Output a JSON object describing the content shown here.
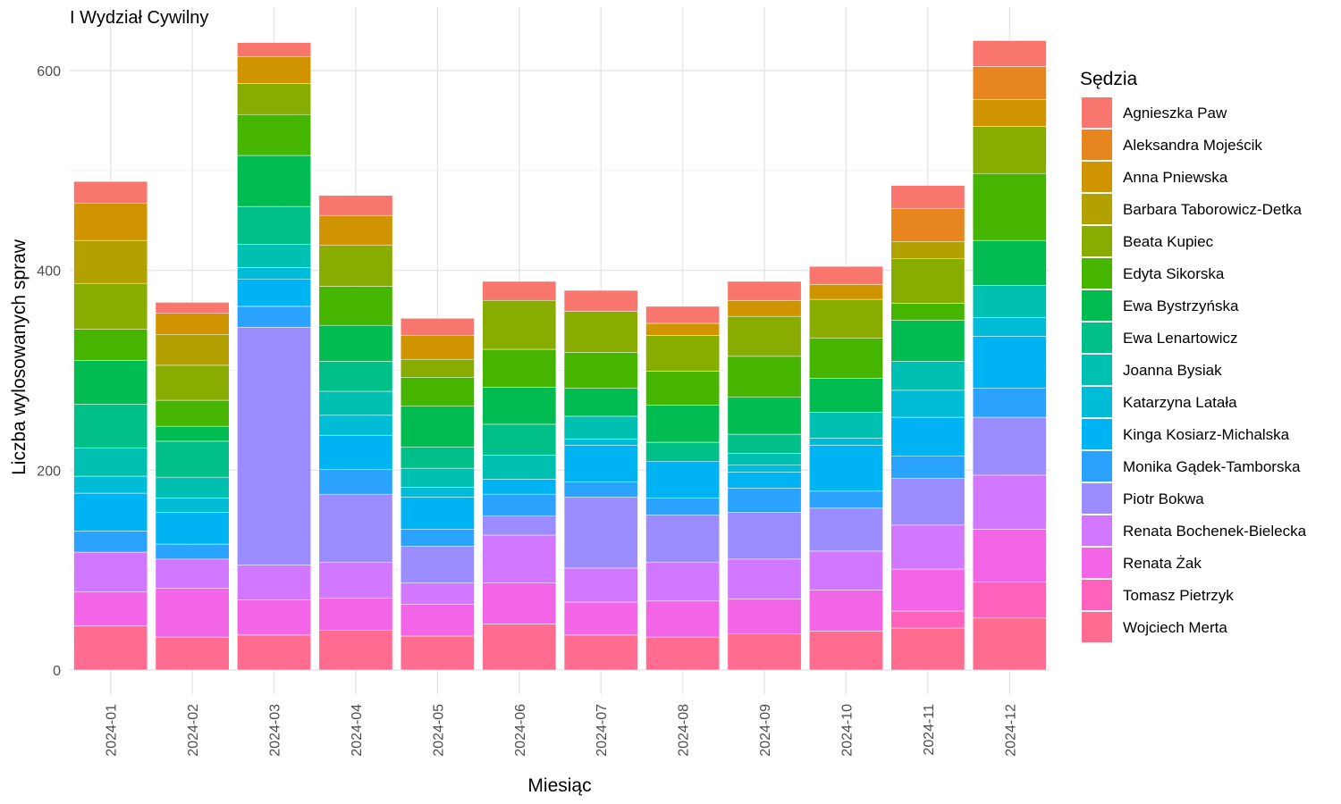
{
  "chart_data": {
    "type": "bar",
    "stacked": true,
    "title": "I Wydział Cywilny",
    "xlabel": "Miesiąc",
    "ylabel": "Liczba wylosowanych spraw",
    "ylim": [
      0,
      640
    ],
    "yticks": [
      0,
      200,
      400,
      600
    ],
    "grid": true,
    "legend_position": "right",
    "legend_title": "Sędzia",
    "categories": [
      "2024-01",
      "2024-02",
      "2024-03",
      "2024-04",
      "2024-05",
      "2024-06",
      "2024-07",
      "2024-08",
      "2024-09",
      "2024-10",
      "2024-11",
      "2024-12"
    ],
    "series": [
      {
        "name": "Agnieszka Paw",
        "color": "#F8766D",
        "values": [
          22,
          11,
          14,
          20,
          17,
          19,
          21,
          17,
          19,
          18,
          23,
          26
        ]
      },
      {
        "name": "Aleksandra Mojeścik",
        "color": "#E7851E",
        "values": [
          0,
          0,
          0,
          0,
          0,
          0,
          0,
          0,
          0,
          0,
          33,
          33
        ]
      },
      {
        "name": "Anna Pniewska",
        "color": "#D09400",
        "values": [
          37,
          21,
          27,
          30,
          24,
          0,
          0,
          12,
          16,
          15,
          0,
          27
        ]
      },
      {
        "name": "Barbara Taborowicz-Detka",
        "color": "#B2A100",
        "values": [
          43,
          31,
          0,
          0,
          0,
          0,
          0,
          0,
          0,
          0,
          17,
          0
        ]
      },
      {
        "name": "Beata Kupiec",
        "color": "#89AC00",
        "values": [
          46,
          35,
          31,
          41,
          18,
          49,
          41,
          36,
          40,
          39,
          45,
          47
        ]
      },
      {
        "name": "Edyta Sikorska",
        "color": "#45B500",
        "values": [
          31,
          26,
          41,
          39,
          29,
          38,
          36,
          34,
          41,
          40,
          17,
          67
        ]
      },
      {
        "name": "Ewa Bystrzyńska",
        "color": "#00BC51",
        "values": [
          44,
          15,
          51,
          36,
          41,
          37,
          28,
          37,
          37,
          34,
          41,
          45
        ]
      },
      {
        "name": "Ewa Lenartowicz",
        "color": "#00C087",
        "values": [
          44,
          36,
          38,
          30,
          21,
          31,
          0,
          19,
          19,
          0,
          0,
          0
        ]
      },
      {
        "name": "Joanna Bysiak",
        "color": "#00C0B2",
        "values": [
          28,
          21,
          23,
          24,
          19,
          24,
          23,
          0,
          12,
          26,
          29,
          32
        ]
      },
      {
        "name": "Katarzyna Latała",
        "color": "#00BCD6",
        "values": [
          17,
          14,
          12,
          20,
          10,
          0,
          6,
          0,
          7,
          7,
          27,
          19
        ]
      },
      {
        "name": "Kinga Kosiarz-Michalska",
        "color": "#00B3F2",
        "values": [
          38,
          32,
          27,
          34,
          32,
          15,
          37,
          37,
          16,
          46,
          39,
          52
        ]
      },
      {
        "name": "Monika Gądek-Tamborska",
        "color": "#29A3FF",
        "values": [
          21,
          15,
          21,
          25,
          17,
          22,
          15,
          17,
          24,
          17,
          22,
          29
        ]
      },
      {
        "name": "Piotr Bokwa",
        "color": "#9C8DFF",
        "values": [
          0,
          0,
          238,
          68,
          37,
          19,
          71,
          47,
          47,
          43,
          47,
          58
        ]
      },
      {
        "name": "Renata Bochenek-Bielecka",
        "color": "#D277FF",
        "values": [
          40,
          29,
          35,
          36,
          21,
          48,
          34,
          39,
          40,
          39,
          44,
          54
        ]
      },
      {
        "name": "Renata Żak",
        "color": "#F265E7",
        "values": [
          34,
          49,
          35,
          32,
          32,
          41,
          33,
          36,
          35,
          41,
          42,
          53
        ]
      },
      {
        "name": "Tomasz Pietrzyk",
        "color": "#FF62BC",
        "values": [
          0,
          0,
          0,
          0,
          0,
          0,
          0,
          0,
          0,
          0,
          17,
          36
        ]
      },
      {
        "name": "Wojciech Merta",
        "color": "#FF6C90",
        "values": [
          44,
          33,
          35,
          40,
          34,
          46,
          35,
          33,
          36,
          39,
          42,
          52
        ]
      }
    ]
  }
}
